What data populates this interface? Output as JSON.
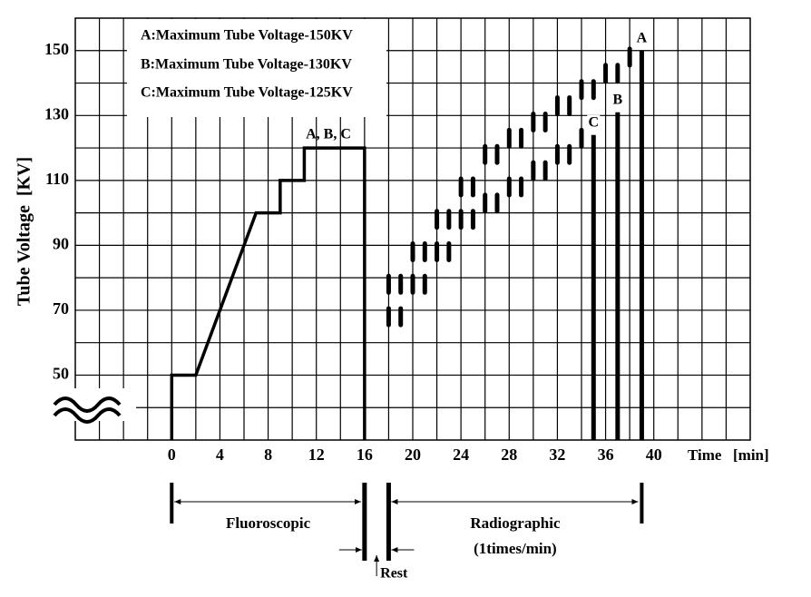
{
  "chart_data": {
    "type": "line",
    "y_label": "Tube Voltage  [KV]",
    "x_label": "Time",
    "x_unit": "[min]",
    "legend_lines": [
      "A:Maximum Tube Voltage-150KV",
      "B:Maximum Tube Voltage-130KV",
      "C:Maximum Tube Voltage-125KV"
    ],
    "xlim": [
      -8,
      48
    ],
    "ylim": [
      30,
      160
    ],
    "xticks": [
      0,
      4,
      8,
      12,
      16,
      20,
      24,
      28,
      32,
      36,
      40
    ],
    "yticks": [
      50,
      70,
      90,
      110,
      130,
      150
    ],
    "xgrid": [
      -6,
      -4,
      -2,
      0,
      2,
      4,
      6,
      8,
      10,
      12,
      14,
      16,
      18,
      20,
      22,
      24,
      26,
      28,
      30,
      32,
      34,
      36,
      38,
      40,
      42,
      44,
      46
    ],
    "ygrid": [
      40,
      50,
      60,
      70,
      80,
      90,
      100,
      110,
      120,
      130,
      140,
      150
    ],
    "color": "#000000",
    "series": [
      {
        "style": "line",
        "x": [
          0,
          0,
          2,
          7,
          9,
          9,
          11,
          11,
          16,
          16
        ],
        "values": [
          30,
          50,
          50,
          100,
          100,
          110,
          110,
          120,
          120,
          30
        ]
      },
      {
        "style": "dash",
        "x": [
          18,
          19,
          20,
          21,
          22,
          23,
          24,
          25,
          26,
          27,
          28,
          29,
          30,
          31,
          32,
          33,
          34,
          35,
          36,
          37,
          38
        ],
        "values": [
          78,
          78,
          88,
          88,
          98,
          98,
          108,
          108,
          118,
          118,
          123,
          123,
          128,
          128,
          133,
          133,
          138,
          138,
          143,
          143,
          148
        ]
      },
      {
        "style": "dash",
        "x": [
          18,
          19,
          20,
          21,
          22,
          23,
          24,
          25,
          26,
          27,
          28,
          29,
          30,
          31,
          32,
          33,
          34
        ],
        "values": [
          68,
          68,
          78,
          78,
          88,
          88,
          98,
          98,
          103,
          103,
          108,
          108,
          113,
          113,
          118,
          118,
          123
        ]
      },
      {
        "style": "bar",
        "x": [
          35,
          37,
          39
        ],
        "values": [
          124,
          131,
          150
        ],
        "labels": [
          "C",
          "B",
          "A"
        ]
      }
    ],
    "plateau_label": {
      "text": "A, B, C",
      "x": 13,
      "y": 120
    },
    "phases": [
      {
        "label": "Fluoroscopic",
        "start": 0,
        "end": 16
      },
      {
        "label": "Radiographic",
        "note": "(1times/min)",
        "start": 18,
        "end": 39
      }
    ],
    "rest_label": "Rest"
  }
}
